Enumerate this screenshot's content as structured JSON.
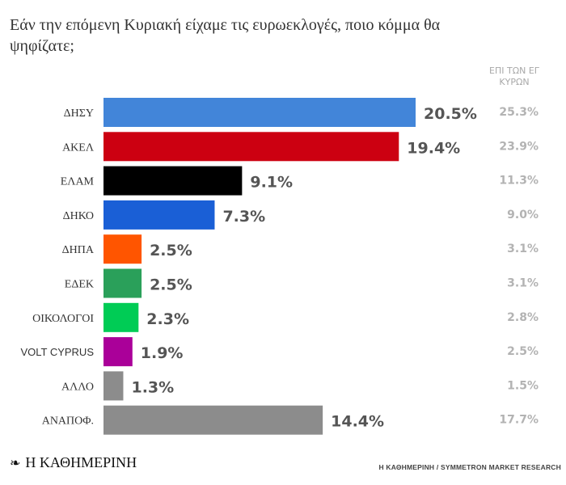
{
  "chart_data": {
    "type": "bar",
    "orientation": "horizontal",
    "title": "Εάν την επόμενη Κυριακή είχαμε τις ευρωεκλογές, ποιο κόμμα θα ψηφίζατε;",
    "secondary_header": "ΕΠΙ ΤΩΝ ΕΓΚΥΡΩΝ",
    "categories": [
      "ΔΗΣΥ",
      "ΑΚΕΛ",
      "ΕΛΑΜ",
      "ΔΗΚΟ",
      "ΔΗΠΑ",
      "ΕΔΕΚ",
      "ΟΙΚΟΛΟΓΟΙ",
      "VOLT CYPRUS",
      "ΑΛΛΟ",
      "ΑΝΑΠΟΦ."
    ],
    "values": [
      20.5,
      19.4,
      9.1,
      7.3,
      2.5,
      2.5,
      2.3,
      1.9,
      1.3,
      14.4
    ],
    "value_labels": [
      "20.5%",
      "19.4%",
      "9.1%",
      "7.3%",
      "2.5%",
      "2.5%",
      "2.3%",
      "1.9%",
      "1.3%",
      "14.4%"
    ],
    "valid_votes_labels": [
      "25.3%",
      "23.9%",
      "11.3%",
      "9.0%",
      "3.1%",
      "3.1%",
      "2.8%",
      "2.5%",
      "1.5%",
      "17.7%"
    ],
    "colors": [
      "#4285d9",
      "#cc0011",
      "#000000",
      "#1a5fd6",
      "#ff5500",
      "#2aa05a",
      "#00cc55",
      "#aa0099",
      "#8c8c8c",
      "#8c8c8c"
    ],
    "xlim": [
      0,
      22
    ],
    "grid": false,
    "legend": "none"
  },
  "footer": {
    "logo_mark": "❧",
    "logo_text": "Η ΚΑΘΗΜΕΡΙΝΗ",
    "source": "Η ΚΑΘΗΜΕΡΙΝΗ / SYMMETRON MARKET RESEARCH"
  }
}
